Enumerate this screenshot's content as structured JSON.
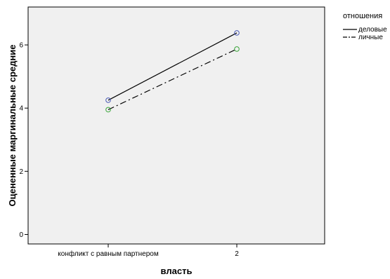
{
  "chart_data": {
    "type": "line",
    "xlabel": "власть",
    "ylabel": "Оцененные маргинальные средние",
    "categories": [
      "конфликт с равным партнером",
      "2"
    ],
    "ylim": [
      -0.3,
      7.2
    ],
    "yticks": [
      0,
      2,
      4,
      6
    ],
    "grid": false,
    "legend_title": "отношения",
    "legend_position": "right, outside plot",
    "series": [
      {
        "name": "деловые",
        "values": [
          4.25,
          6.38
        ],
        "line_style": "solid",
        "line_color": "#000000",
        "marker": "circle",
        "marker_color": "#4a5bb5"
      },
      {
        "name": "личные",
        "values": [
          3.95,
          5.87
        ],
        "line_style": "dash-dot",
        "line_color": "#000000",
        "marker": "circle",
        "marker_color": "#3aa53a"
      }
    ],
    "colors": {
      "plot_background": "#f0f0f0",
      "plot_border": "#000000"
    }
  }
}
